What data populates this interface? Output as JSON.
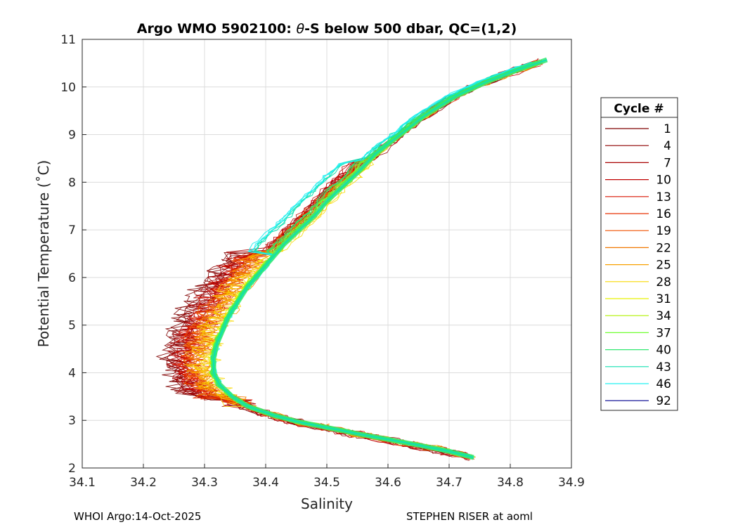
{
  "chart_data": {
    "type": "line",
    "title_prefix": "Argo WMO 5902100: ",
    "title_symbol": "θ",
    "title_suffix": "-S below 500 dbar,  QC=(1,2)",
    "xlabel": "Salinity",
    "ylabel": "Potential Temperature (˚C)",
    "xlim": [
      34.1,
      34.9
    ],
    "ylim": [
      2,
      11
    ],
    "xticks": [
      "34.1",
      "34.2",
      "34.3",
      "34.4",
      "34.5",
      "34.6",
      "34.7",
      "34.8",
      "34.9"
    ],
    "yticks": [
      "2",
      "3",
      "4",
      "5",
      "6",
      "7",
      "8",
      "9",
      "10",
      "11"
    ],
    "grid": true,
    "legend_title": "Cycle #",
    "legend_placement": "outside-right",
    "legend": [
      {
        "label": "1",
        "color": "#7f0000"
      },
      {
        "label": "4",
        "color": "#8f0000"
      },
      {
        "label": "7",
        "color": "#a80000"
      },
      {
        "label": "10",
        "color": "#c00000"
      },
      {
        "label": "13",
        "color": "#d81400"
      },
      {
        "label": "16",
        "color": "#e83000"
      },
      {
        "label": "19",
        "color": "#f05000"
      },
      {
        "label": "22",
        "color": "#f07800"
      },
      {
        "label": "25",
        "color": "#f8a000"
      },
      {
        "label": "28",
        "color": "#f8d800"
      },
      {
        "label": "31",
        "color": "#e8f000"
      },
      {
        "label": "34",
        "color": "#b0f000"
      },
      {
        "label": "37",
        "color": "#70ff30"
      },
      {
        "label": "40",
        "color": "#30e870"
      },
      {
        "label": "43",
        "color": "#10e0b0"
      },
      {
        "label": "46",
        "color": "#20f0f0"
      },
      {
        "label": "92",
        "color": "#00008f"
      }
    ],
    "core_curve": [
      [
        34.74,
        2.22
      ],
      [
        34.7,
        2.35
      ],
      [
        34.65,
        2.48
      ],
      [
        34.6,
        2.6
      ],
      [
        34.55,
        2.72
      ],
      [
        34.5,
        2.85
      ],
      [
        34.45,
        2.98
      ],
      [
        34.41,
        3.12
      ],
      [
        34.37,
        3.3
      ],
      [
        34.345,
        3.5
      ],
      [
        34.325,
        3.75
      ],
      [
        34.315,
        4.0
      ],
      [
        34.315,
        4.3
      ],
      [
        34.32,
        4.6
      ],
      [
        34.33,
        4.9
      ],
      [
        34.34,
        5.2
      ],
      [
        34.355,
        5.5
      ],
      [
        34.37,
        5.8
      ],
      [
        34.39,
        6.1
      ],
      [
        34.41,
        6.4
      ],
      [
        34.43,
        6.7
      ],
      [
        34.455,
        7.0
      ],
      [
        34.48,
        7.3
      ],
      [
        34.5,
        7.6
      ],
      [
        34.525,
        7.9
      ],
      [
        34.55,
        8.2
      ],
      [
        34.58,
        8.6
      ],
      [
        34.62,
        9.0
      ],
      [
        34.66,
        9.4
      ],
      [
        34.71,
        9.8
      ],
      [
        34.76,
        10.1
      ],
      [
        34.81,
        10.35
      ],
      [
        34.86,
        10.57
      ]
    ],
    "cycle_offsets": [
      {
        "cycle": "1",
        "dx": [
          -0.07,
          -0.03,
          0.0
        ],
        "dy": 0.0
      },
      {
        "cycle": "4",
        "dx": [
          -0.06,
          -0.025,
          0.005
        ],
        "dy": -0.02
      },
      {
        "cycle": "7",
        "dx": [
          -0.05,
          -0.03,
          0.0
        ],
        "dy": 0.03
      },
      {
        "cycle": "10",
        "dx": [
          -0.045,
          -0.035,
          -0.005
        ],
        "dy": -0.03
      },
      {
        "cycle": "13",
        "dx": [
          -0.04,
          -0.02,
          0.0
        ],
        "dy": 0.02
      },
      {
        "cycle": "16",
        "dx": [
          -0.035,
          -0.025,
          0.005
        ],
        "dy": 0.0
      },
      {
        "cycle": "19",
        "dx": [
          -0.03,
          -0.015,
          -0.005
        ],
        "dy": 0.01
      },
      {
        "cycle": "22",
        "dx": [
          -0.025,
          -0.02,
          0.0
        ],
        "dy": -0.01
      },
      {
        "cycle": "25",
        "dx": [
          -0.02,
          -0.01,
          0.005
        ],
        "dy": 0.02
      },
      {
        "cycle": "28",
        "dx": [
          -0.015,
          -0.005,
          0.01
        ],
        "dy": 0.0
      },
      {
        "cycle": "31",
        "dx": [
          -0.01,
          -0.005,
          0.005
        ],
        "dy": 0.01
      },
      {
        "cycle": "34",
        "dx": [
          -0.008,
          0.0,
          0.0
        ],
        "dy": -0.01
      },
      {
        "cycle": "37",
        "dx": [
          -0.005,
          0.003,
          -0.01
        ],
        "dy": 0.0
      },
      {
        "cycle": "40",
        "dx": [
          -0.003,
          0.005,
          -0.02
        ],
        "dy": 0.01
      },
      {
        "cycle": "43",
        "dx": [
          0.0,
          0.0,
          -0.04
        ],
        "dy": 0.0
      },
      {
        "cycle": "46",
        "dx": [
          0.002,
          0.004,
          -0.05
        ],
        "dy": -0.01
      },
      {
        "cycle": "92",
        "dx": [
          0.0,
          0.0,
          0.0
        ],
        "dy": 0.0
      }
    ]
  },
  "footer": {
    "left": "WHOI Argo:14-Oct-2025",
    "right": "STEPHEN RISER at aoml"
  }
}
